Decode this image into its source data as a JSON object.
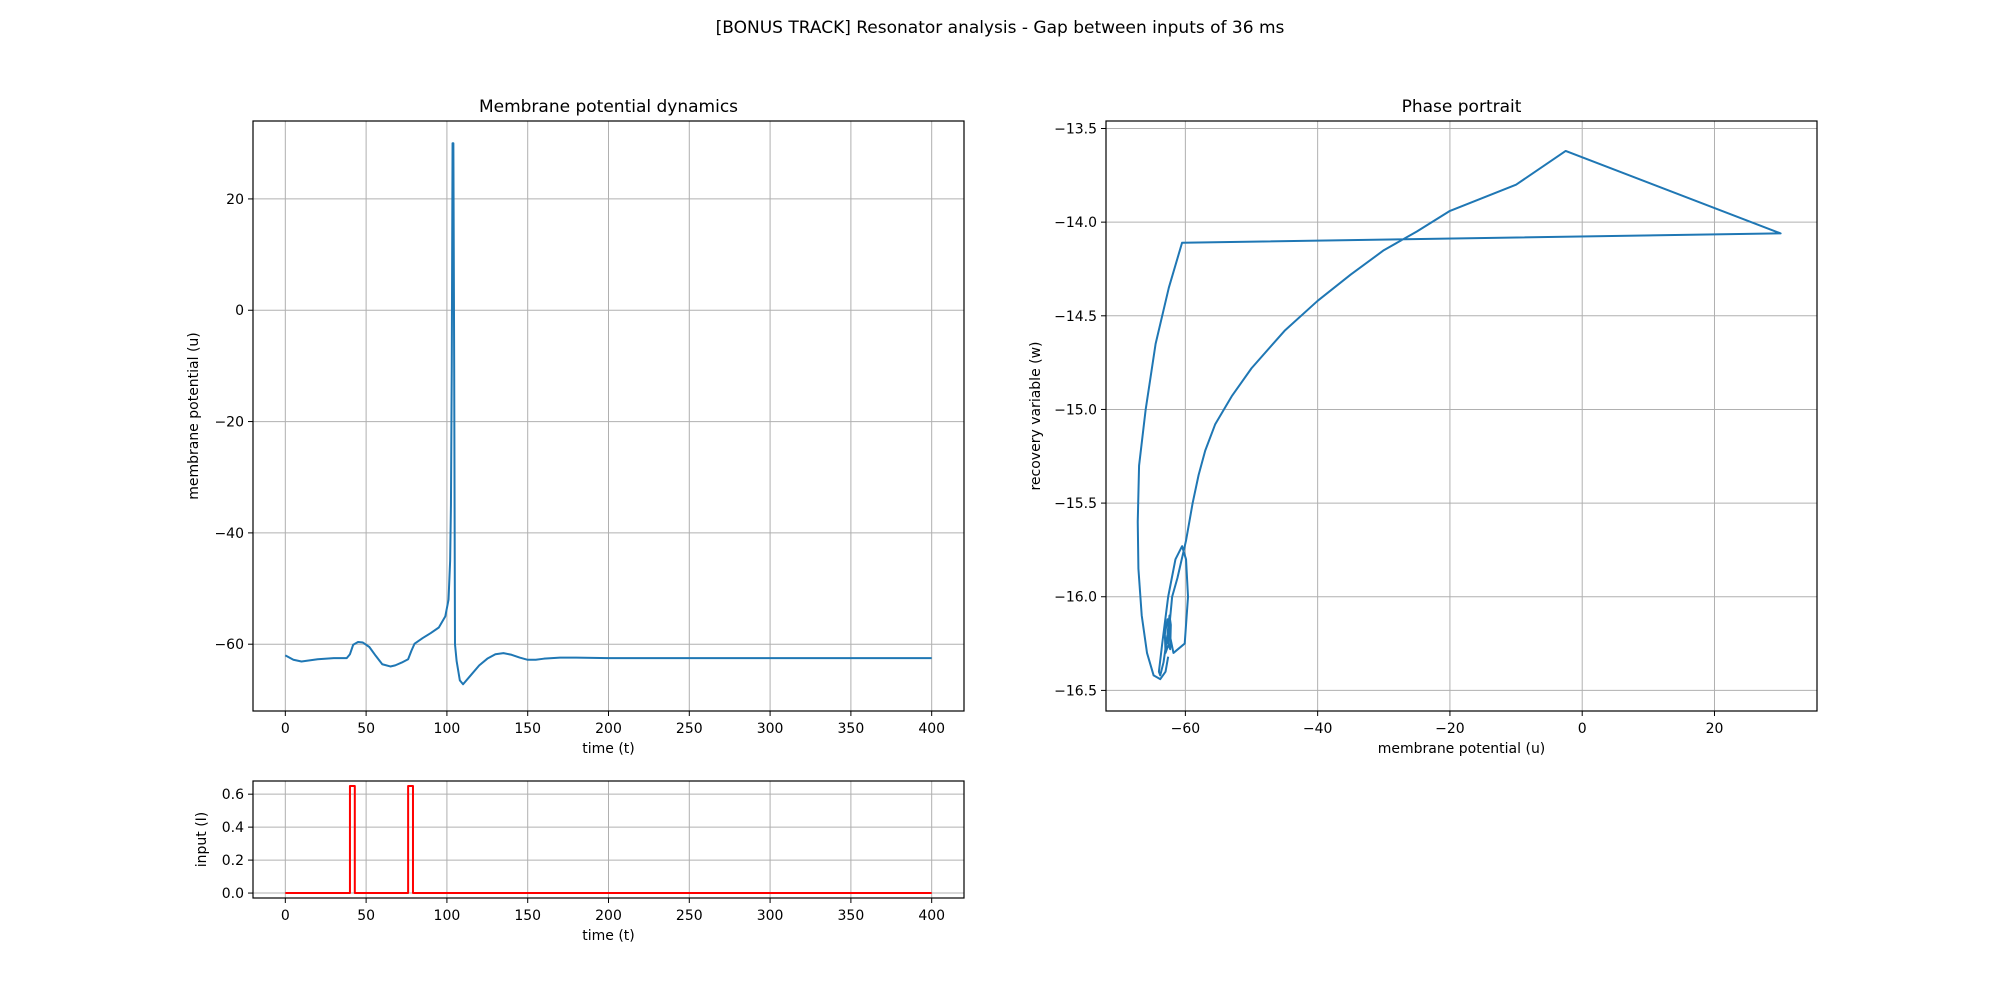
{
  "figure": {
    "suptitle": "[BONUS TRACK] Resonator analysis - Gap between inputs of 36 ms"
  },
  "chart_data": [
    {
      "id": "membrane",
      "type": "line",
      "title": "Membrane potential dynamics",
      "xlabel": "time (t)",
      "ylabel": "membrane potential (u)",
      "xlim": [
        -20,
        420
      ],
      "ylim": [
        -72,
        34
      ],
      "xticks": [
        0,
        50,
        100,
        150,
        200,
        250,
        300,
        350,
        400
      ],
      "yticks": [
        -60,
        -40,
        -20,
        0,
        20
      ],
      "grid": true,
      "series": [
        {
          "color": "#1f77b4",
          "x": [
            0,
            5,
            10,
            20,
            30,
            38,
            40,
            42,
            45,
            48,
            52,
            56,
            60,
            65,
            68,
            72,
            76,
            78,
            80,
            85,
            90,
            95,
            99,
            101,
            102,
            102.5,
            103,
            103.5,
            104,
            104.5,
            105,
            106,
            108,
            110,
            115,
            120,
            125,
            130,
            135,
            140,
            145,
            150,
            155,
            160,
            170,
            180,
            200,
            250,
            300,
            350,
            400
          ],
          "y": [
            -62,
            -62.8,
            -63.1,
            -62.7,
            -62.5,
            -62.5,
            -61.8,
            -60.1,
            -59.6,
            -59.7,
            -60.5,
            -62.1,
            -63.6,
            -64,
            -63.8,
            -63.3,
            -62.7,
            -61.2,
            -59.9,
            -58.9,
            -58,
            -57,
            -55,
            -52,
            -45,
            -35,
            -10,
            30,
            30,
            -10,
            -60,
            -63,
            -66.5,
            -67.2,
            -65.5,
            -63.8,
            -62.6,
            -61.8,
            -61.6,
            -61.9,
            -62.4,
            -62.8,
            -62.8,
            -62.6,
            -62.4,
            -62.4,
            -62.5,
            -62.5,
            -62.5,
            -62.5,
            -62.5
          ]
        }
      ]
    },
    {
      "id": "input",
      "type": "line",
      "title": "",
      "xlabel": "time (t)",
      "ylabel": "input (I)",
      "xlim": [
        -20,
        420
      ],
      "ylim": [
        -0.03,
        0.68
      ],
      "xticks": [
        0,
        50,
        100,
        150,
        200,
        250,
        300,
        350,
        400
      ],
      "yticks": [
        0.0,
        0.2,
        0.4,
        0.6
      ],
      "ytick_labels": [
        "0.0",
        "0.2",
        "0.4",
        "0.6"
      ],
      "grid": true,
      "series": [
        {
          "color": "#ff0000",
          "x": [
            0,
            40,
            40,
            43,
            43,
            76,
            76,
            79,
            79,
            400
          ],
          "y": [
            0,
            0,
            0.65,
            0.65,
            0,
            0,
            0.65,
            0.65,
            0,
            0
          ]
        }
      ]
    },
    {
      "id": "phase",
      "type": "line",
      "title": "Phase portrait",
      "xlabel": "membrane potential (u)",
      "ylabel": "recovery variable (w)",
      "xlim": [
        -72,
        35.5
      ],
      "ylim": [
        -16.61,
        -13.46
      ],
      "xticks": [
        -60,
        -40,
        -20,
        0,
        20
      ],
      "xtick_labels": [
        "−60",
        "−40",
        "−20",
        "0",
        "20"
      ],
      "yticks": [
        -16.5,
        -16.0,
        -15.5,
        -15.0,
        -14.5,
        -14.0,
        -13.5
      ],
      "ytick_labels": [
        "−16.5",
        "−16.0",
        "−15.5",
        "−15.0",
        "−14.5",
        "−14.0",
        "−13.5"
      ],
      "grid": true,
      "series": [
        {
          "color": "#1f77b4",
          "x": [
            -62.5,
            -63,
            -63.1,
            -62.7,
            -62.5,
            -61.8,
            -60.1,
            -59.6,
            -59.9,
            -60.5,
            -61.5,
            -62.6,
            -63.5,
            -64,
            -63.8,
            -63.3,
            -62.7,
            -62.4,
            -62.2,
            -62.3,
            -62.6,
            -62.4,
            -62,
            -61.2,
            -59.9,
            -58.9,
            -58,
            -57,
            -55.5,
            -53,
            -50,
            -45,
            -40,
            -35,
            -30,
            -25,
            -20,
            -10,
            -2.5,
            30,
            -60.5,
            -62.5,
            -64.5,
            -66,
            -67,
            -67.2,
            -67.1,
            -66.6,
            -65.8,
            -64.8,
            -63.8,
            -63,
            -62.6
          ],
          "y": [
            -16.25,
            -16.3,
            -16.2,
            -16.12,
            -16.18,
            -16.3,
            -16.25,
            -16.0,
            -15.8,
            -15.73,
            -15.8,
            -16.0,
            -16.25,
            -16.4,
            -16.42,
            -16.35,
            -16.2,
            -16.1,
            -16.15,
            -16.28,
            -16.25,
            -16.15,
            -16.0,
            -15.9,
            -15.7,
            -15.5,
            -15.35,
            -15.22,
            -15.08,
            -14.93,
            -14.78,
            -14.58,
            -14.42,
            -14.28,
            -14.15,
            -14.05,
            -13.94,
            -13.8,
            -13.62,
            -14.06,
            -14.11,
            -14.35,
            -14.65,
            -15.0,
            -15.3,
            -15.6,
            -15.85,
            -16.1,
            -16.3,
            -16.42,
            -16.44,
            -16.4,
            -16.32
          ]
        }
      ]
    }
  ]
}
